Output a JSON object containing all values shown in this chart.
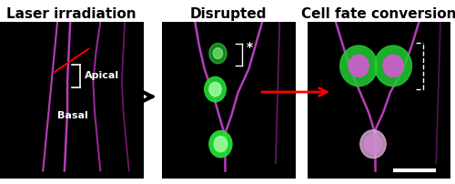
{
  "title_left": "Laser irradiation",
  "title_mid": "Disrupted",
  "title_right": "Cell fate conversion",
  "bg_color": "#000000",
  "white_color": "#ffffff",
  "fig_bg": "#ffffff",
  "arrow_color": "#111111",
  "red_arrow_color": "#ff0000",
  "label_apical": "Apical",
  "label_basal": "Basal",
  "asterisk": "*",
  "title_fontsize": 11,
  "label_fontsize": 10,
  "scale_bar_color": "#ffffff"
}
